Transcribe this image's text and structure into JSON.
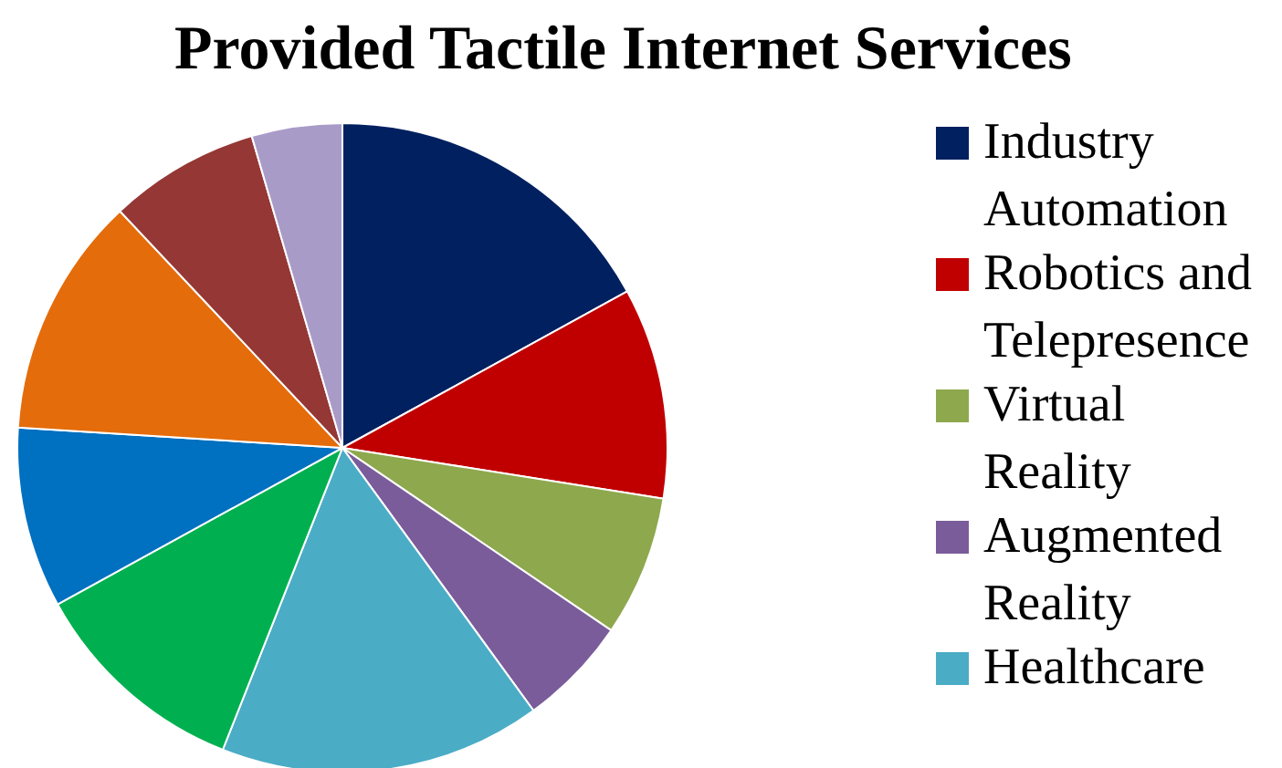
{
  "chart_data": {
    "type": "pie",
    "title": "Provided Tactile Internet Services",
    "categories": [
      "Industry Automation",
      "Robotics and Telepresence",
      "Virtual Reality",
      "Augmented Reality",
      "Healthcare",
      null,
      null,
      null,
      null,
      null
    ],
    "values": [
      17,
      10.5,
      7,
      5.5,
      16,
      11,
      9,
      12,
      7.5,
      4.5
    ],
    "colors": [
      "#002060",
      "#c00000",
      "#8ea84e",
      "#7b5c9a",
      "#4bacc6",
      "#00b050",
      "#0070c0",
      "#e46c0a",
      "#953735",
      "#a99bc8"
    ],
    "legend": "right"
  }
}
